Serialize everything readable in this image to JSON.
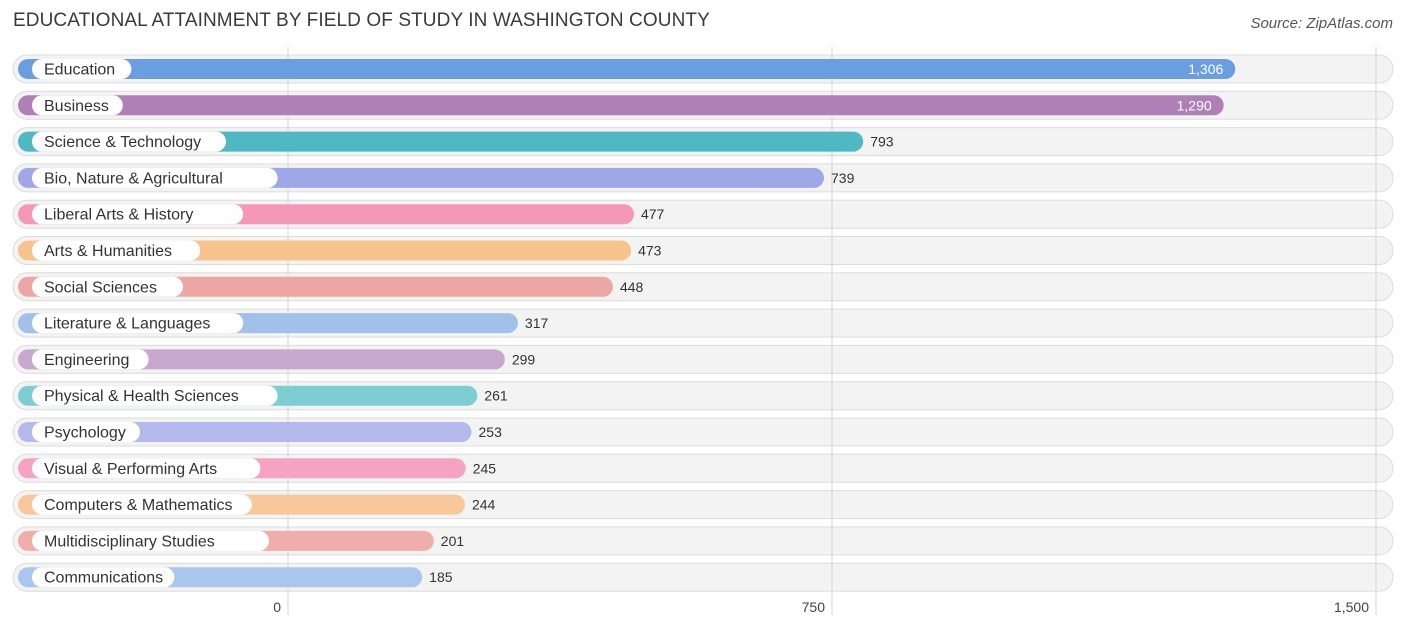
{
  "title": "EDUCATIONAL ATTAINMENT BY FIELD OF STUDY IN WASHINGTON COUNTY",
  "source": "Source: ZipAtlas.com",
  "chart_data": {
    "type": "bar",
    "orientation": "horizontal",
    "title": "EDUCATIONAL ATTAINMENT BY FIELD OF STUDY IN WASHINGTON COUNTY",
    "xlabel": "",
    "ylabel": "",
    "xlim": [
      0,
      1500
    ],
    "ticks": [
      0,
      750,
      1500
    ],
    "tick_labels": [
      "0",
      "750",
      "1,500"
    ],
    "grid": true,
    "categories": [
      "Education",
      "Business",
      "Science & Technology",
      "Bio, Nature & Agricultural",
      "Liberal Arts & History",
      "Arts & Humanities",
      "Social Sciences",
      "Literature & Languages",
      "Engineering",
      "Physical & Health Sciences",
      "Psychology",
      "Visual & Performing Arts",
      "Computers & Mathematics",
      "Multidisciplinary Studies",
      "Communications"
    ],
    "values": [
      1306,
      1290,
      793,
      739,
      477,
      473,
      448,
      317,
      299,
      261,
      253,
      245,
      244,
      201,
      185
    ],
    "value_labels": [
      "1,306",
      "1,290",
      "793",
      "739",
      "477",
      "473",
      "448",
      "317",
      "299",
      "261",
      "253",
      "245",
      "244",
      "201",
      "185"
    ],
    "colors": [
      "#6a9ee0",
      "#b07fb8",
      "#4fb8c3",
      "#9fa8e6",
      "#f597b6",
      "#f8c48e",
      "#eca6a3",
      "#a1c0ea",
      "#c9a8cf",
      "#7dcdd1",
      "#b4b9ec",
      "#f6a2c1",
      "#f9c89a",
      "#efaeaa",
      "#a9c6ee"
    ]
  }
}
